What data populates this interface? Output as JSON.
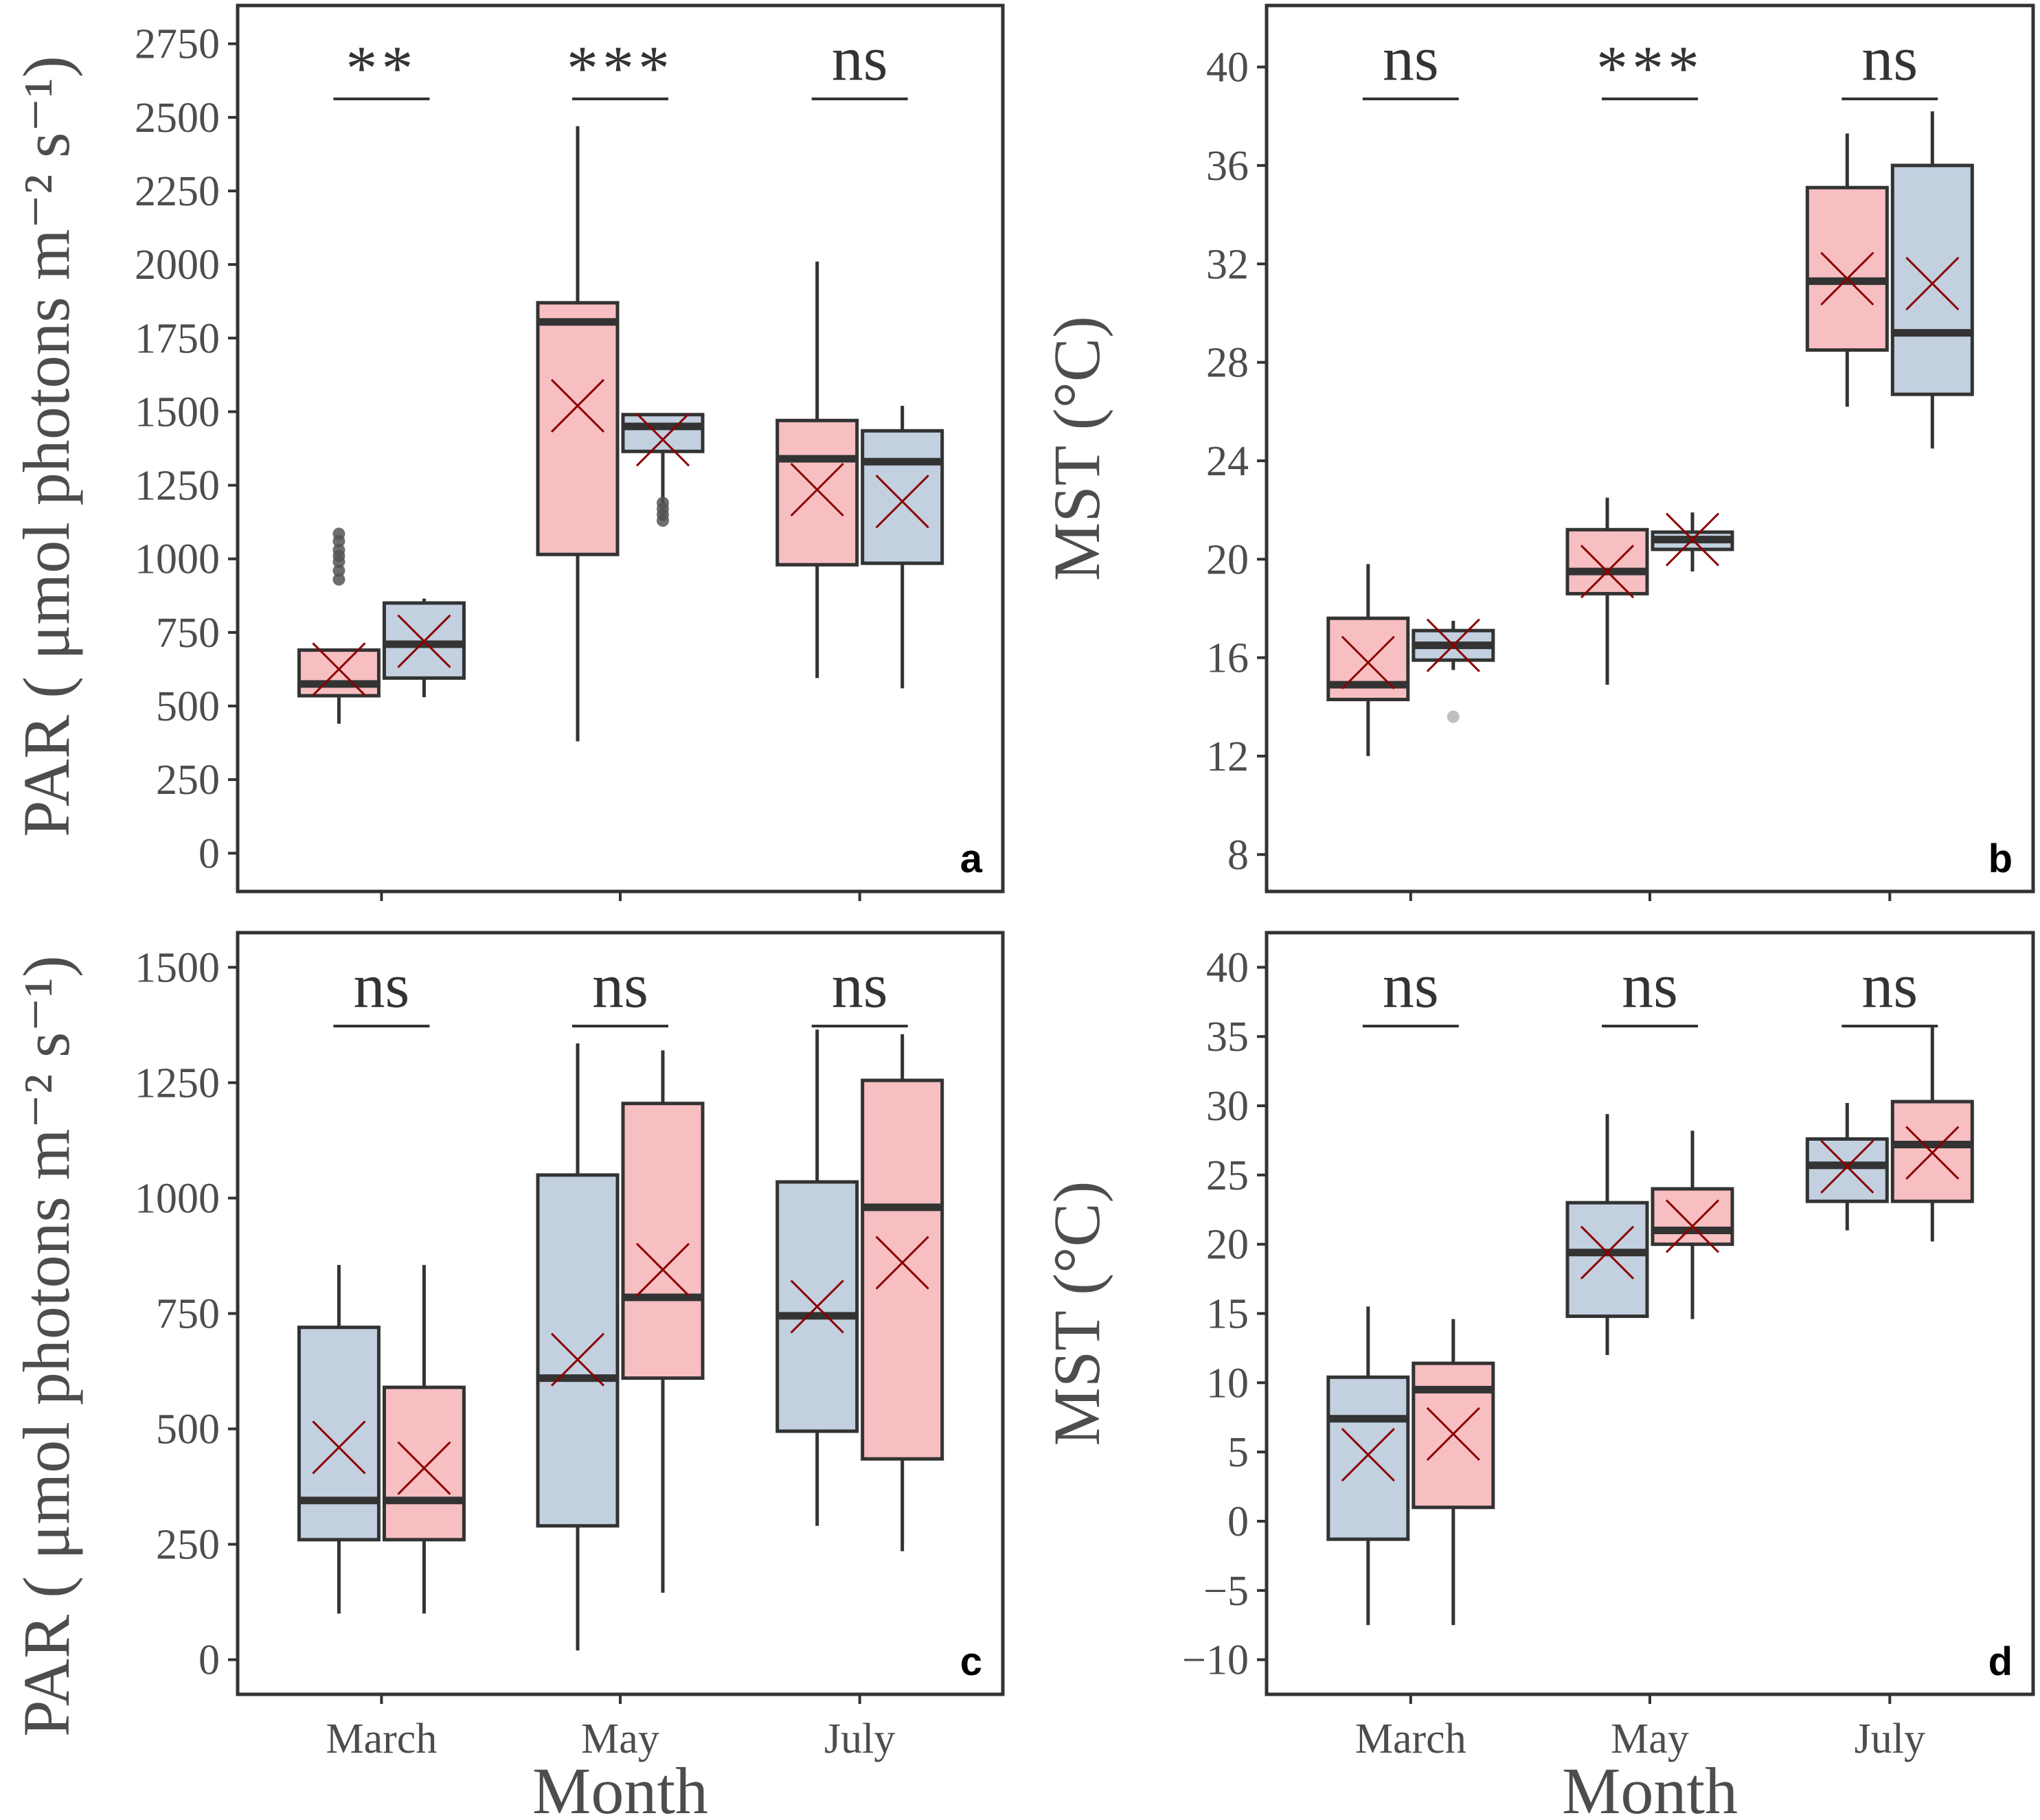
{
  "colors": {
    "pink": "#f7bfc2",
    "blue": "#c2d0e0",
    "outline": "#333333",
    "mean_marker": "#8b0000",
    "outlier_dark": "#555555",
    "outlier_light": "#c0c0c0"
  },
  "chart_data": [
    {
      "panel": "a",
      "type": "box",
      "ylabel": "PAR ( μmol photons m⁻² s⁻¹)",
      "xlabel": "",
      "ylim": [
        -130,
        2880
      ],
      "yticks": [
        0,
        250,
        500,
        750,
        1000,
        1250,
        1500,
        1750,
        2000,
        2250,
        2500,
        2750
      ],
      "categories": [
        "March",
        "May",
        "July"
      ],
      "significance": [
        "**",
        "***",
        "ns"
      ],
      "boxes": [
        {
          "month": 0,
          "side": "left",
          "color": "pink",
          "low": 440,
          "q1": 535,
          "median": 575,
          "q3": 690,
          "high": 690,
          "mean": 625,
          "outliers": [
            930,
            960,
            990,
            1010,
            1030,
            1060,
            1085
          ],
          "outlier_tone": "dark"
        },
        {
          "month": 0,
          "side": "right",
          "color": "blue",
          "low": 530,
          "q1": 595,
          "median": 710,
          "q3": 850,
          "high": 865,
          "mean": 720
        },
        {
          "month": 1,
          "side": "left",
          "color": "pink",
          "low": 380,
          "q1": 1015,
          "median": 1805,
          "q3": 1870,
          "high": 2470,
          "mean": 1520
        },
        {
          "month": 1,
          "side": "right",
          "color": "blue",
          "low": 1130,
          "q1": 1365,
          "median": 1450,
          "q3": 1490,
          "high": 1495,
          "mean": 1405,
          "outliers": [
            1130,
            1150,
            1170,
            1190
          ],
          "outlier_tone": "dark"
        },
        {
          "month": 2,
          "side": "left",
          "color": "pink",
          "low": 595,
          "q1": 980,
          "median": 1340,
          "q3": 1470,
          "high": 2010,
          "mean": 1235
        },
        {
          "month": 2,
          "side": "right",
          "color": "blue",
          "low": 560,
          "q1": 985,
          "median": 1330,
          "q3": 1435,
          "high": 1520,
          "mean": 1195
        }
      ]
    },
    {
      "panel": "b",
      "type": "box",
      "ylabel": "MST (°C)",
      "xlabel": "",
      "ylim": [
        6.5,
        42.5
      ],
      "yticks": [
        8,
        12,
        16,
        20,
        24,
        28,
        32,
        36,
        40
      ],
      "categories": [
        "March",
        "May",
        "July"
      ],
      "significance": [
        "ns",
        "***",
        "ns"
      ],
      "boxes": [
        {
          "month": 0,
          "side": "left",
          "color": "pink",
          "low": 12,
          "q1": 14.3,
          "median": 14.9,
          "q3": 17.6,
          "high": 19.8,
          "mean": 15.8
        },
        {
          "month": 0,
          "side": "right",
          "color": "blue",
          "low": 15.5,
          "q1": 15.9,
          "median": 16.5,
          "q3": 17.1,
          "high": 17.5,
          "mean": 16.5,
          "outliers": [
            13.6
          ],
          "outlier_tone": "light"
        },
        {
          "month": 1,
          "side": "left",
          "color": "pink",
          "low": 14.9,
          "q1": 18.6,
          "median": 19.5,
          "q3": 21.2,
          "high": 22.5,
          "mean": 19.5
        },
        {
          "month": 1,
          "side": "right",
          "color": "blue",
          "low": 19.5,
          "q1": 20.4,
          "median": 20.8,
          "q3": 21.1,
          "high": 21.9,
          "mean": 20.8
        },
        {
          "month": 2,
          "side": "left",
          "color": "pink",
          "low": 26.2,
          "q1": 28.5,
          "median": 31.3,
          "q3": 35.1,
          "high": 37.3,
          "mean": 31.4
        },
        {
          "month": 2,
          "side": "right",
          "color": "blue",
          "low": 24.5,
          "q1": 26.7,
          "median": 29.2,
          "q3": 36,
          "high": 38.2,
          "mean": 31.2
        }
      ]
    },
    {
      "panel": "c",
      "type": "box",
      "ylabel": "PAR ( μmol photons m⁻² s⁻¹)",
      "xlabel": "Month",
      "ylim": [
        -75,
        1575
      ],
      "yticks": [
        0,
        250,
        500,
        750,
        1000,
        1250,
        1500
      ],
      "categories": [
        "March",
        "May",
        "July"
      ],
      "significance": [
        "ns",
        "ns",
        "ns"
      ],
      "boxes": [
        {
          "month": 0,
          "side": "left",
          "color": "blue",
          "low": 100,
          "q1": 260,
          "median": 345,
          "q3": 720,
          "high": 855,
          "mean": 460
        },
        {
          "month": 0,
          "side": "right",
          "color": "pink",
          "low": 100,
          "q1": 260,
          "median": 345,
          "q3": 590,
          "high": 855,
          "mean": 415
        },
        {
          "month": 1,
          "side": "left",
          "color": "blue",
          "low": 20,
          "q1": 290,
          "median": 610,
          "q3": 1050,
          "high": 1335,
          "mean": 650
        },
        {
          "month": 1,
          "side": "right",
          "color": "pink",
          "low": 145,
          "q1": 610,
          "median": 785,
          "q3": 1205,
          "high": 1320,
          "mean": 845
        },
        {
          "month": 2,
          "side": "left",
          "color": "blue",
          "low": 290,
          "q1": 495,
          "median": 745,
          "q3": 1035,
          "high": 1365,
          "mean": 765
        },
        {
          "month": 2,
          "side": "right",
          "color": "pink",
          "low": 235,
          "q1": 435,
          "median": 980,
          "q3": 1255,
          "high": 1355,
          "mean": 860
        }
      ]
    },
    {
      "panel": "d",
      "type": "box",
      "ylabel": "MST (°C)",
      "xlabel": "Month",
      "ylim": [
        -12.5,
        42.5
      ],
      "yticks": [
        -10,
        -5,
        0,
        5,
        10,
        15,
        20,
        25,
        30,
        35,
        40
      ],
      "yticklabels": [
        "−10",
        "−5",
        "0",
        "5",
        "10",
        "15",
        "20",
        "25",
        "30",
        "35",
        "40"
      ],
      "categories": [
        "March",
        "May",
        "July"
      ],
      "significance": [
        "ns",
        "ns",
        "ns"
      ],
      "boxes": [
        {
          "month": 0,
          "side": "left",
          "color": "blue",
          "low": -7.5,
          "q1": -1.3,
          "median": 7.4,
          "q3": 10.4,
          "high": 15.5,
          "mean": 4.8
        },
        {
          "month": 0,
          "side": "right",
          "color": "pink",
          "low": -7.5,
          "q1": 1,
          "median": 9.5,
          "q3": 11.4,
          "high": 14.6,
          "mean": 6.3
        },
        {
          "month": 1,
          "side": "left",
          "color": "blue",
          "low": 12,
          "q1": 14.8,
          "median": 19.4,
          "q3": 23,
          "high": 29.4,
          "mean": 19.4
        },
        {
          "month": 1,
          "side": "right",
          "color": "pink",
          "low": 14.6,
          "q1": 20,
          "median": 21,
          "q3": 24,
          "high": 28.2,
          "mean": 21.3
        },
        {
          "month": 2,
          "side": "left",
          "color": "blue",
          "low": 21,
          "q1": 23.1,
          "median": 25.7,
          "q3": 27.6,
          "high": 30.2,
          "mean": 25.6
        },
        {
          "month": 2,
          "side": "right",
          "color": "pink",
          "low": 20.2,
          "q1": 23.1,
          "median": 27.2,
          "q3": 30.3,
          "high": 35.8,
          "mean": 26.6
        }
      ]
    }
  ]
}
